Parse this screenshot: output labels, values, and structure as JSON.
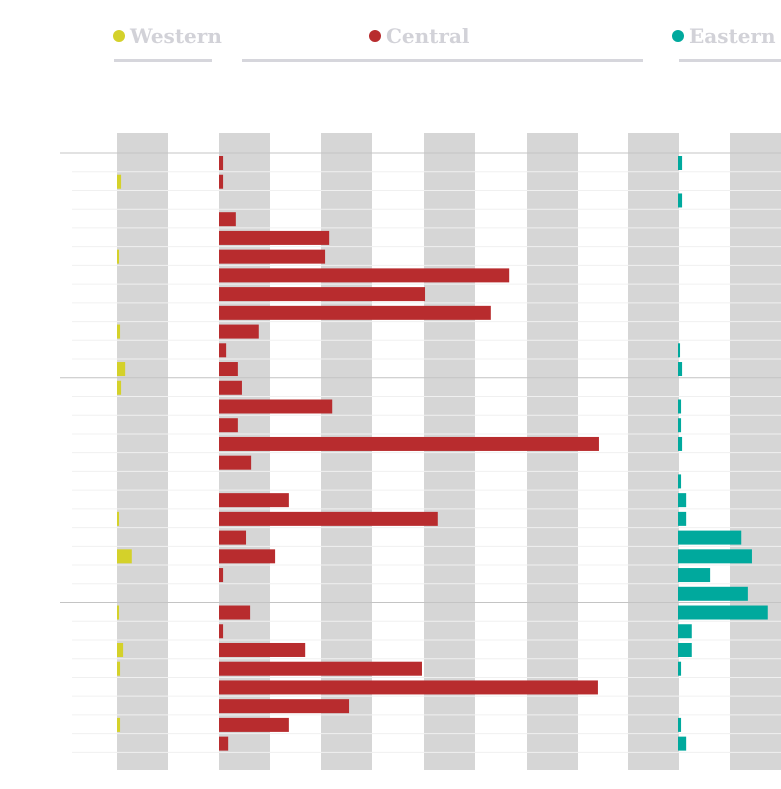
{
  "chart_data": {
    "type": "bar",
    "orientation": "horizontal",
    "title": "",
    "xlabel": "",
    "ylabel": "",
    "grid": "alternating vertical bands",
    "legend_placement": "top",
    "row_count": 32,
    "series": [
      {
        "name": "Western",
        "color": "#d4d12a",
        "values": [
          0,
          0.8,
          0,
          0,
          0,
          0.4,
          0,
          0,
          0,
          0.6,
          0,
          1.6,
          0.8,
          0,
          0,
          0,
          0,
          0,
          0,
          0.4,
          0,
          2.9,
          0,
          0,
          0.4,
          0,
          1.2,
          0.6,
          0,
          0,
          0.6,
          0
        ]
      },
      {
        "name": "Central",
        "color": "#b82c2e",
        "values": [
          0.8,
          0.8,
          0,
          3.3,
          21.6,
          20.8,
          56.9,
          40.4,
          53.3,
          7.8,
          1.4,
          3.7,
          4.5,
          22.2,
          3.7,
          74.5,
          6.3,
          0,
          13.7,
          42.9,
          5.3,
          11,
          0.8,
          0,
          6.1,
          0.8,
          16.9,
          39.8,
          74.3,
          25.5,
          13.7,
          1.8
        ]
      },
      {
        "name": "Eastern",
        "color": "#00a99d",
        "values": [
          0.8,
          0,
          0.8,
          0,
          0,
          0,
          0,
          0,
          0,
          0,
          0.4,
          0.8,
          0,
          0.6,
          0.6,
          0.8,
          0,
          0.6,
          1.6,
          1.6,
          12.4,
          14.5,
          6.3,
          13.7,
          17.6,
          2.7,
          2.7,
          0.6,
          0,
          0,
          0.6,
          1.6
        ]
      }
    ]
  }
}
